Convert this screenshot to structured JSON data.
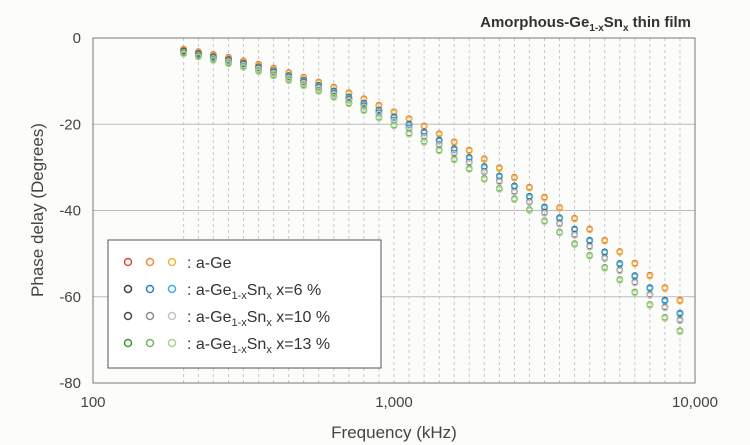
{
  "chart_data": {
    "type": "scatter",
    "title": "Amorphous-Ge1-xSnx thin film",
    "title_parts": {
      "base": "Amorphous-Ge",
      "sub": "1-x",
      "mid": "Sn",
      "sub2": "x",
      "tail": " thin film"
    },
    "xlabel": "Frequency (kHz)",
    "ylabel": "Phase delay (Degrees)",
    "x_scale": "log",
    "xlim": [
      100,
      10000
    ],
    "ylim": [
      -80,
      0
    ],
    "x_ticks": [
      {
        "value": 100,
        "label": "100"
      },
      {
        "value": 1000,
        "label": "1,000"
      },
      {
        "value": 10000,
        "label": "10,000"
      }
    ],
    "y_ticks": [
      {
        "value": 0,
        "label": "0"
      },
      {
        "value": -20,
        "label": "-20"
      },
      {
        "value": -40,
        "label": "-40"
      },
      {
        "value": -60,
        "label": "-60"
      },
      {
        "value": -80,
        "label": "-80"
      }
    ],
    "grid": "vertical dashed at frequencies, horizontal solid at y ticks",
    "legend_position": "bottom-left",
    "frequencies_kHz": [
      200,
      224,
      251,
      282,
      316,
      355,
      398,
      447,
      501,
      562,
      631,
      708,
      794,
      891,
      1000,
      1122,
      1259,
      1413,
      1585,
      1778,
      1995,
      2239,
      2512,
      2818,
      3162,
      3548,
      3981,
      4467,
      5012,
      5623,
      6310,
      7079,
      7943,
      8913
    ],
    "series": [
      {
        "name": "a-Ge",
        "group": "a-Ge",
        "color": "#d94a3d",
        "values": [
          -2.6,
          -3.2,
          -3.8,
          -4.5,
          -5.3,
          -6.1,
          -7.0,
          -8.0,
          -9.1,
          -10.2,
          -11.4,
          -12.7,
          -14.1,
          -15.6,
          -17.1,
          -18.7,
          -20.4,
          -22.2,
          -24.1,
          -26.0,
          -28.0,
          -30.1,
          -32.3,
          -34.6,
          -36.9,
          -39.3,
          -41.8,
          -44.3,
          -46.9,
          -49.5,
          -52.2,
          -55.0,
          -57.9,
          -60.8
        ]
      },
      {
        "name": "a-Ge",
        "group": "a-Ge",
        "color": "#ee8a3c",
        "values": [
          -2.7,
          -3.3,
          -3.9,
          -4.6,
          -5.4,
          -6.2,
          -7.1,
          -8.1,
          -9.2,
          -10.3,
          -11.5,
          -12.8,
          -14.2,
          -15.7,
          -17.2,
          -18.8,
          -20.5,
          -22.3,
          -24.2,
          -26.1,
          -28.1,
          -30.2,
          -32.4,
          -34.7,
          -37.0,
          -39.4,
          -41.9,
          -44.4,
          -47.0,
          -49.6,
          -52.3,
          -55.1,
          -58.0,
          -60.9
        ]
      },
      {
        "name": "a-Ge",
        "group": "a-Ge",
        "color": "#f2b43a",
        "values": [
          -2.8,
          -3.4,
          -4.0,
          -4.7,
          -5.5,
          -6.3,
          -7.2,
          -8.2,
          -9.3,
          -10.4,
          -11.6,
          -12.9,
          -14.3,
          -15.8,
          -17.3,
          -18.9,
          -20.6,
          -22.4,
          -24.3,
          -26.2,
          -28.2,
          -30.3,
          -32.5,
          -34.8,
          -37.1,
          -39.5,
          -42.0,
          -44.5,
          -47.1,
          -49.7,
          -52.4,
          -55.2,
          -58.1,
          -61.0
        ]
      },
      {
        "name": "a-Ge1-xSnx x=6 %",
        "group": "x6",
        "color": "#3a4048",
        "values": [
          -3.0,
          -3.6,
          -4.3,
          -5.0,
          -5.8,
          -6.7,
          -7.6,
          -8.7,
          -9.8,
          -11.0,
          -12.3,
          -13.7,
          -15.1,
          -16.7,
          -18.3,
          -20.0,
          -21.8,
          -23.7,
          -25.7,
          -27.7,
          -29.8,
          -32.0,
          -34.3,
          -36.7,
          -39.2,
          -41.7,
          -44.3,
          -46.9,
          -49.6,
          -52.3,
          -55.1,
          -57.9,
          -60.8,
          -63.8
        ]
      },
      {
        "name": "a-Ge1-xSnx x=6 %",
        "group": "x6",
        "color": "#2f7fc1",
        "values": [
          -3.1,
          -3.7,
          -4.4,
          -5.1,
          -5.9,
          -6.8,
          -7.7,
          -8.8,
          -9.9,
          -11.1,
          -12.4,
          -13.8,
          -15.2,
          -16.8,
          -18.4,
          -20.1,
          -21.9,
          -23.8,
          -25.8,
          -27.8,
          -29.9,
          -32.1,
          -34.4,
          -36.8,
          -39.3,
          -41.8,
          -44.4,
          -47.0,
          -49.7,
          -52.4,
          -55.2,
          -58.0,
          -60.9,
          -63.9
        ]
      },
      {
        "name": "a-Ge1-xSnx x=6 %",
        "group": "x6",
        "color": "#3fb0dd",
        "values": [
          -3.2,
          -3.8,
          -4.5,
          -5.2,
          -6.0,
          -6.9,
          -7.8,
          -8.9,
          -10.0,
          -11.2,
          -12.5,
          -13.9,
          -15.3,
          -16.9,
          -18.5,
          -20.2,
          -22.0,
          -23.9,
          -25.9,
          -27.9,
          -30.0,
          -32.2,
          -34.5,
          -36.9,
          -39.4,
          -41.9,
          -44.5,
          -47.1,
          -49.8,
          -52.5,
          -55.3,
          -58.1,
          -61.0,
          -64.0
        ]
      },
      {
        "name": "a-Ge1-xSnx x=10 %",
        "group": "x10",
        "color": "#4a4a4a",
        "values": [
          -3.2,
          -3.9,
          -4.6,
          -5.3,
          -6.1,
          -7.0,
          -8.0,
          -9.1,
          -10.3,
          -11.5,
          -12.9,
          -14.3,
          -15.8,
          -17.4,
          -19.1,
          -20.9,
          -22.8,
          -24.7,
          -26.7,
          -28.8,
          -31.0,
          -33.2,
          -35.6,
          -38.0,
          -40.5,
          -43.0,
          -45.6,
          -48.3,
          -51.0,
          -53.8,
          -56.6,
          -59.5,
          -62.4,
          -65.4
        ]
      },
      {
        "name": "a-Ge1-xSnx x=10 %",
        "group": "x10",
        "color": "#8d8d8d",
        "values": [
          -3.3,
          -4.0,
          -4.7,
          -5.4,
          -6.2,
          -7.1,
          -8.1,
          -9.2,
          -10.4,
          -11.6,
          -13.0,
          -14.4,
          -15.9,
          -17.5,
          -19.2,
          -21.0,
          -22.9,
          -24.8,
          -26.8,
          -28.9,
          -31.1,
          -33.3,
          -35.7,
          -38.1,
          -40.6,
          -43.1,
          -45.7,
          -48.4,
          -51.1,
          -53.9,
          -56.7,
          -59.6,
          -62.5,
          -65.5
        ]
      },
      {
        "name": "a-Ge1-xSnx x=10 %",
        "group": "x10",
        "color": "#c2c2c2",
        "values": [
          -3.4,
          -4.1,
          -4.8,
          -5.5,
          -6.3,
          -7.2,
          -8.2,
          -9.3,
          -10.5,
          -11.7,
          -13.1,
          -14.5,
          -16.0,
          -17.6,
          -19.3,
          -21.1,
          -23.0,
          -24.9,
          -26.9,
          -29.0,
          -31.2,
          -33.4,
          -35.8,
          -38.2,
          -40.7,
          -43.2,
          -45.8,
          -48.5,
          -51.2,
          -54.0,
          -56.8,
          -59.7,
          -62.6,
          -65.6
        ]
      },
      {
        "name": "a-Ge1-xSnx x=13 %",
        "group": "x13",
        "color": "#3f9a3c",
        "values": [
          -3.5,
          -4.2,
          -5.0,
          -5.8,
          -6.6,
          -7.6,
          -8.6,
          -9.7,
          -10.9,
          -12.2,
          -13.6,
          -15.1,
          -16.7,
          -18.4,
          -20.2,
          -22.1,
          -24.0,
          -26.0,
          -28.1,
          -30.3,
          -32.6,
          -34.9,
          -37.3,
          -39.8,
          -42.4,
          -45.0,
          -47.7,
          -50.4,
          -53.2,
          -56.0,
          -58.9,
          -61.8,
          -64.8,
          -67.9
        ]
      },
      {
        "name": "a-Ge1-xSnx x=13 %",
        "group": "x13",
        "color": "#72b95a",
        "values": [
          -3.6,
          -4.3,
          -5.1,
          -5.9,
          -6.7,
          -7.7,
          -8.7,
          -9.8,
          -11.0,
          -12.3,
          -13.7,
          -15.2,
          -16.8,
          -18.5,
          -20.3,
          -22.2,
          -24.1,
          -26.1,
          -28.2,
          -30.4,
          -32.7,
          -35.0,
          -37.4,
          -39.9,
          -42.5,
          -45.1,
          -47.8,
          -50.5,
          -53.3,
          -56.1,
          -59.0,
          -61.9,
          -64.9,
          -68.0
        ]
      },
      {
        "name": "a-Ge1-xSnx x=13 %",
        "group": "x13",
        "color": "#a9d28d",
        "values": [
          -3.7,
          -4.4,
          -5.2,
          -6.0,
          -6.8,
          -7.8,
          -8.8,
          -9.9,
          -11.1,
          -12.4,
          -13.8,
          -15.3,
          -16.9,
          -18.6,
          -20.4,
          -22.3,
          -24.2,
          -26.2,
          -28.3,
          -30.5,
          -32.8,
          -35.1,
          -37.5,
          -40.0,
          -42.6,
          -45.2,
          -47.9,
          -50.6,
          -53.4,
          -56.2,
          -59.1,
          -62.0,
          -65.0,
          -68.1
        ]
      }
    ],
    "legend": [
      {
        "text": ": a-Ge",
        "base": ": a-Ge",
        "sub": "",
        "mid": "",
        "sub2": "",
        "tail": "",
        "colors": [
          "#d94a3d",
          "#ee8a3c",
          "#f2b43a"
        ]
      },
      {
        "text": ": a-Ge1-xSnx x=6 %",
        "base": ": a-Ge",
        "sub": "1-x",
        "mid": "Sn",
        "sub2": "x",
        "tail": "  x=6 %",
        "colors": [
          "#3a4048",
          "#2f7fc1",
          "#3fb0dd"
        ]
      },
      {
        "text": ": a-Ge1-xSnx x=10 %",
        "base": ": a-Ge",
        "sub": "1-x",
        "mid": "Sn",
        "sub2": "x",
        "tail": "  x=10 %",
        "colors": [
          "#4a4a4a",
          "#8d8d8d",
          "#c2c2c2"
        ]
      },
      {
        "text": ": a-Ge1-xSnx x=13 %",
        "base": ": a-Ge",
        "sub": "1-x",
        "mid": "Sn",
        "sub2": "x",
        "tail": "  x=13 %",
        "colors": [
          "#3f9a3c",
          "#72b95a",
          "#a9d28d"
        ]
      }
    ]
  }
}
